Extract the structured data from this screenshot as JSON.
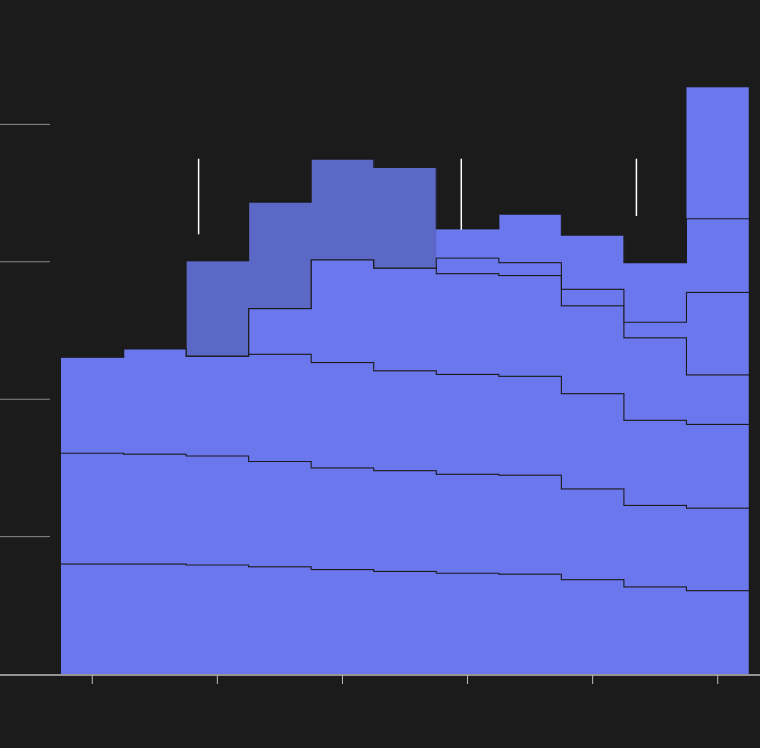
{
  "colors": {
    "background": "#1b1b1b",
    "fill": "#6b77ec",
    "fill_highlight": "#5c68c6",
    "boundary": "#1b1b1b",
    "axis": "#bdbdbd",
    "grid": "#8a8a8a",
    "error_bar": "#ffffff"
  },
  "chart_data": {
    "type": "area",
    "stacked": true,
    "step": true,
    "grid": "horizontal-left-stubs",
    "legend": "none",
    "x_bins": 11,
    "x_ticks": [
      0.5,
      2.5,
      4.5,
      6.5,
      8.5,
      10.5
    ],
    "ylim": [
      0,
      12
    ],
    "y_ticks": [
      3,
      6,
      9,
      12
    ],
    "highlight_bins": [
      2,
      3,
      4,
      5
    ],
    "series": [
      {
        "values": [
          2.4,
          2.4,
          2.38,
          2.34,
          2.28,
          2.24,
          2.2,
          2.18,
          2.06,
          1.9,
          1.82
        ]
      },
      {
        "values": [
          2.42,
          2.4,
          2.38,
          2.3,
          2.22,
          2.2,
          2.16,
          2.16,
          1.98,
          1.78,
          1.8
        ]
      },
      {
        "values": [
          2.1,
          2.3,
          2.18,
          2.34,
          2.3,
          2.18,
          2.18,
          2.16,
          2.08,
          1.86,
          1.83
        ]
      },
      {
        "values": [
          0,
          0,
          0,
          1.0,
          2.24,
          2.24,
          2.2,
          2.2,
          1.92,
          1.8,
          1.08
        ]
      },
      {
        "values": [
          0,
          0,
          0,
          0,
          0,
          0,
          0.34,
          0.28,
          0.36,
          0.34,
          1.8
        ]
      },
      {
        "values": [
          0,
          0,
          2.08,
          2.32,
          2.2,
          2.2,
          0.64,
          1.06,
          1.18,
          1.3,
          1.61
        ]
      },
      {
        "values": [
          0,
          0,
          0,
          0,
          0,
          0,
          0,
          0,
          0,
          0,
          2.87
        ]
      }
    ],
    "error_bars": [
      {
        "x": 2.2,
        "low": 9.6,
        "high": 11.25
      },
      {
        "x": 6.4,
        "low": 9.7,
        "high": 11.25
      },
      {
        "x": 9.2,
        "low": 10.0,
        "high": 11.25
      }
    ]
  }
}
